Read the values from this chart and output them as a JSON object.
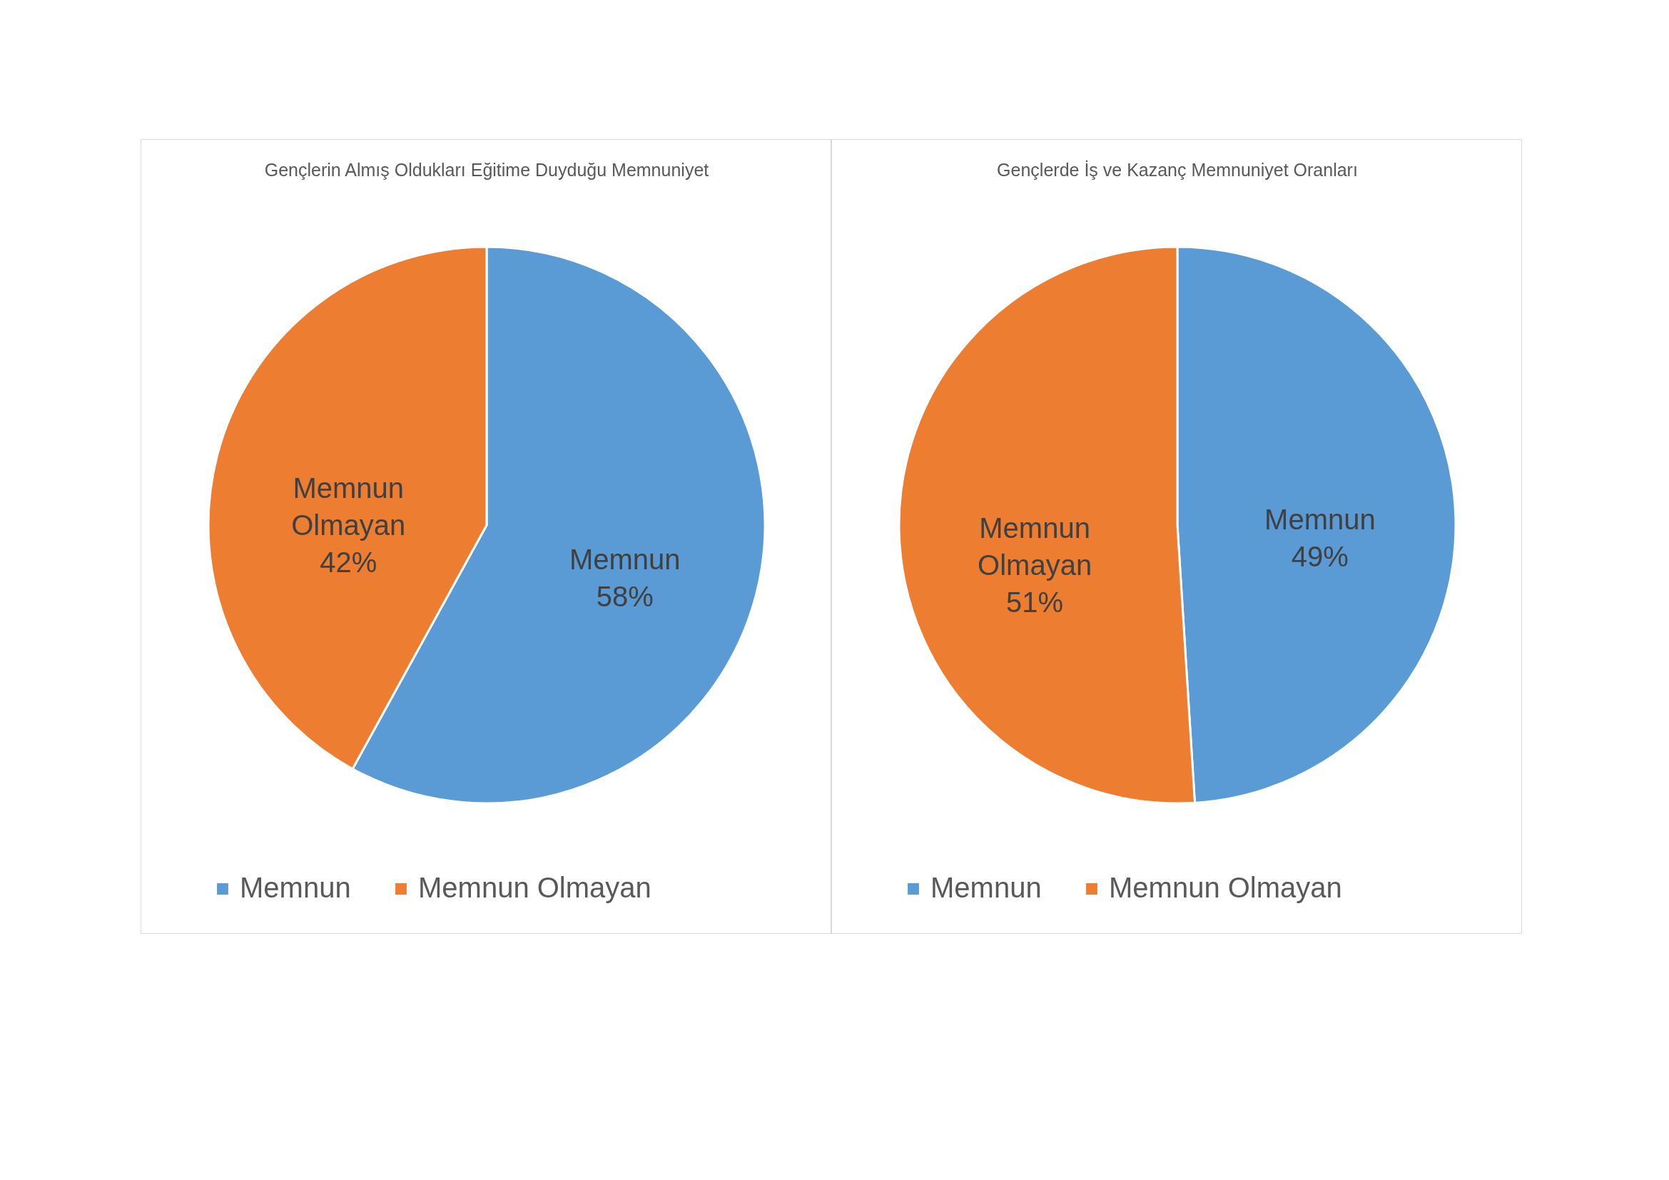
{
  "chart_data": [
    {
      "type": "pie",
      "title": "Gençlerin Almış Oldukları Eğitime Duyduğu Memnuniyet",
      "categories": [
        "Memnun",
        "Memnun Olmayan"
      ],
      "values": [
        58,
        42
      ],
      "value_labels": [
        "58%",
        "42%"
      ],
      "colors": [
        "#5b9bd5",
        "#ed7d31"
      ],
      "legend": "bottom"
    },
    {
      "type": "pie",
      "title": "Gençlerde İş ve Kazanç Memnuniyet Oranları",
      "categories": [
        "Memnun",
        "Memnun Olmayan"
      ],
      "values": [
        49,
        51
      ],
      "value_labels": [
        "49%",
        "51%"
      ],
      "colors": [
        "#5b9bd5",
        "#ed7d31"
      ],
      "legend": "bottom"
    }
  ]
}
